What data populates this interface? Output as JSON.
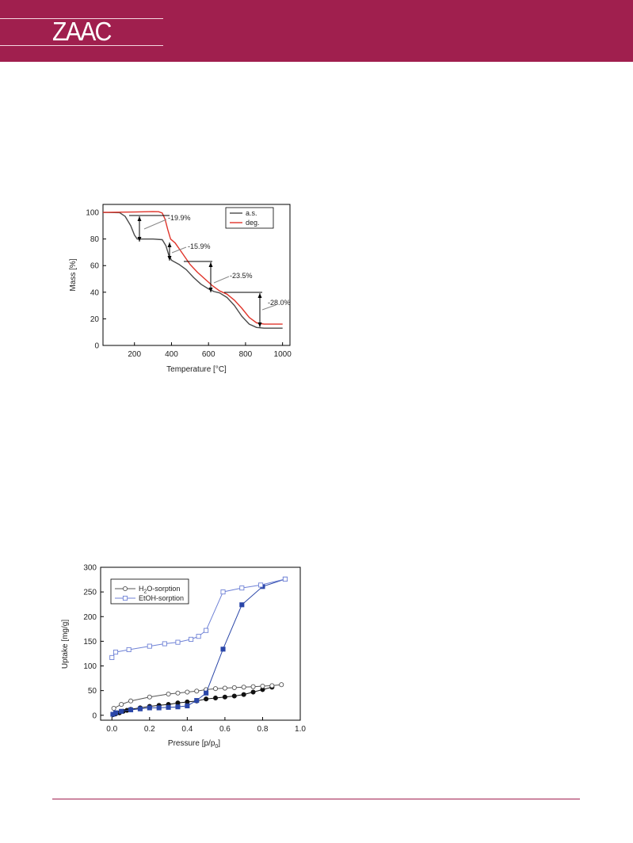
{
  "journal": {
    "logo": "ZAAC",
    "brand_color": "#a01f4e"
  },
  "chart_data": [
    {
      "type": "line",
      "xlabel": "Temperature [°C]",
      "ylabel": "Mass [%]",
      "xlim": [
        30,
        1040
      ],
      "ylim": [
        0,
        106
      ],
      "xticks": [
        200,
        400,
        600,
        800,
        1000
      ],
      "yticks": [
        0,
        20,
        40,
        60,
        80,
        100
      ],
      "legend_position": "top-right",
      "series": [
        {
          "name": "a.s.",
          "color": "#4a4a4a",
          "x": [
            30,
            120,
            150,
            180,
            200,
            215,
            300,
            350,
            370,
            385,
            400,
            440,
            480,
            520,
            560,
            600,
            630,
            660,
            700,
            740,
            780,
            820,
            860,
            900,
            950,
            1000
          ],
          "y": [
            100,
            99.8,
            97,
            90,
            83,
            80,
            80,
            79.5,
            75,
            68,
            64,
            61,
            57,
            51,
            46,
            42.5,
            40.5,
            39.5,
            36,
            30,
            22,
            16,
            13.5,
            13,
            13,
            13
          ]
        },
        {
          "name": "deg.",
          "color": "#e0342a",
          "x": [
            30,
            200,
            300,
            330,
            350,
            365,
            380,
            395,
            420,
            460,
            500,
            540,
            580,
            620,
            660,
            700,
            740,
            780,
            820,
            860,
            900,
            950,
            1000
          ],
          "y": [
            100,
            100.3,
            100.6,
            100.5,
            99.5,
            95,
            87,
            80,
            77,
            69,
            61,
            55,
            50,
            45,
            41,
            38.5,
            34,
            28,
            21,
            17,
            16,
            16,
            16
          ]
        }
      ],
      "annotations": [
        "-19.9%",
        "-15.9%",
        "-23.5%",
        "-28.0%"
      ]
    },
    {
      "type": "scatter",
      "xlabel": "Pressure [p/p",
      "xlabel_sub": "0",
      "xlabel_end": "]",
      "ylabel": "Uptake [mg/g]",
      "xlim": [
        -0.06,
        1.0
      ],
      "ylim": [
        -10,
        300
      ],
      "xticks": [
        "0.0",
        "0.2",
        "0.4",
        "0.6",
        "0.8",
        "1.0"
      ],
      "yticks": [
        0,
        50,
        100,
        150,
        200,
        250,
        300
      ],
      "legend_position": "top-left",
      "legend": [
        {
          "pre": "H",
          "sub": "2",
          "post": "O-sorption"
        },
        {
          "pre": "EtOH-sorption",
          "sub": "",
          "post": ""
        }
      ],
      "series": [
        {
          "name": "H2O-sorption",
          "kind": "adsorption",
          "color": "#111111",
          "filled": true,
          "marker": "circle",
          "x": [
            0.005,
            0.02,
            0.04,
            0.06,
            0.08,
            0.1,
            0.15,
            0.2,
            0.25,
            0.3,
            0.35,
            0.4,
            0.45,
            0.5,
            0.55,
            0.6,
            0.65,
            0.7,
            0.75,
            0.8,
            0.85
          ],
          "y": [
            1,
            3,
            5,
            8,
            10,
            12,
            15,
            18,
            20,
            22,
            25,
            27,
            29,
            33,
            35,
            37,
            39,
            42,
            47,
            52,
            57
          ]
        },
        {
          "name": "H2O-sorption",
          "kind": "desorption",
          "color": "#555555",
          "filled": false,
          "marker": "circle",
          "x": [
            0.01,
            0.05,
            0.1,
            0.2,
            0.3,
            0.35,
            0.4,
            0.45,
            0.5,
            0.55,
            0.6,
            0.65,
            0.7,
            0.75,
            0.8,
            0.85,
            0.9
          ],
          "y": [
            14,
            22,
            29,
            37,
            43,
            45,
            47,
            49,
            52,
            54,
            55,
            56,
            57,
            58,
            59,
            60,
            62
          ]
        },
        {
          "name": "EtOH-sorption",
          "kind": "adsorption",
          "color": "#2a46a8",
          "filled": true,
          "marker": "square",
          "x": [
            0.005,
            0.02,
            0.05,
            0.1,
            0.15,
            0.2,
            0.25,
            0.3,
            0.35,
            0.4,
            0.45,
            0.5,
            0.59,
            0.69,
            0.8,
            0.92
          ],
          "y": [
            2,
            5,
            8,
            11,
            13,
            15,
            15,
            16,
            17,
            19,
            30,
            45,
            134,
            224,
            261,
            276
          ]
        },
        {
          "name": "EtOH-sorption",
          "kind": "desorption",
          "color": "#6f82d6",
          "filled": false,
          "marker": "square",
          "x": [
            0.0,
            0.02,
            0.09,
            0.2,
            0.28,
            0.35,
            0.42,
            0.46,
            0.5,
            0.59,
            0.69,
            0.79,
            0.92
          ],
          "y": [
            117,
            128,
            133,
            140,
            145,
            148,
            154,
            160,
            172,
            250,
            258,
            264,
            276
          ]
        }
      ]
    }
  ]
}
